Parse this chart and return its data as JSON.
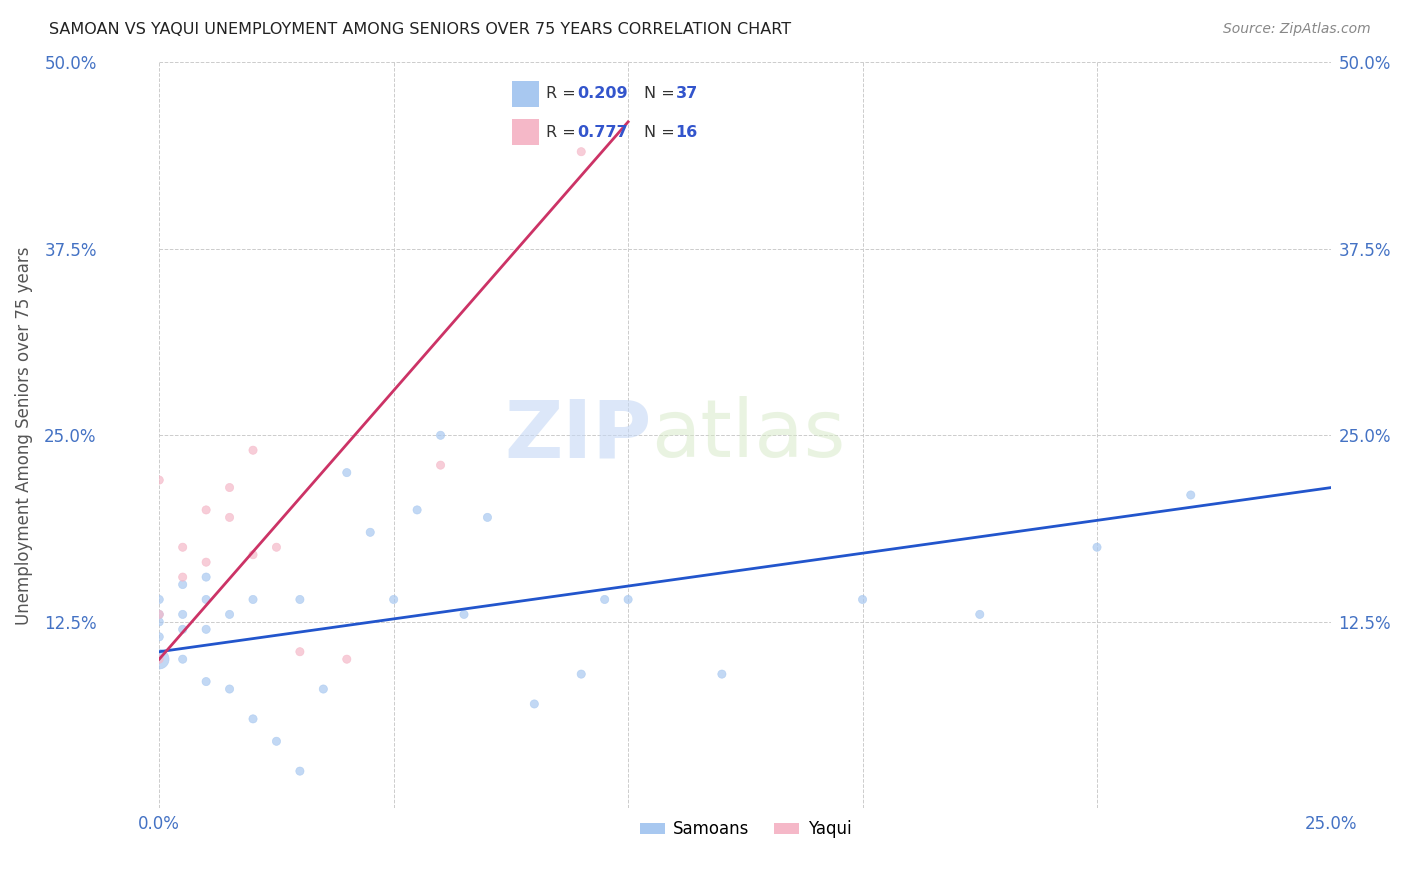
{
  "title": "SAMOAN VS YAQUI UNEMPLOYMENT AMONG SENIORS OVER 75 YEARS CORRELATION CHART",
  "source": "Source: ZipAtlas.com",
  "ylabel": "Unemployment Among Seniors over 75 years",
  "xlim": [
    0.0,
    0.25
  ],
  "ylim": [
    0.0,
    0.5
  ],
  "xticks": [
    0.0,
    0.05,
    0.1,
    0.15,
    0.2,
    0.25
  ],
  "yticks": [
    0.0,
    0.125,
    0.25,
    0.375,
    0.5
  ],
  "xticklabels": [
    "0.0%",
    "",
    "",
    "",
    "",
    "25.0%"
  ],
  "yticklabels": [
    "",
    "12.5%",
    "25.0%",
    "37.5%",
    "50.0%"
  ],
  "samoan_color": "#a8c8f0",
  "yaqui_color": "#f5b8c8",
  "samoan_line_color": "#2255cc",
  "yaqui_line_color": "#cc3366",
  "watermark_zip": "ZIP",
  "watermark_atlas": "atlas",
  "samoan_x": [
    0.0,
    0.0,
    0.0,
    0.0,
    0.0,
    0.005,
    0.005,
    0.005,
    0.005,
    0.01,
    0.01,
    0.01,
    0.01,
    0.015,
    0.015,
    0.02,
    0.02,
    0.025,
    0.03,
    0.03,
    0.035,
    0.04,
    0.045,
    0.05,
    0.055,
    0.06,
    0.065,
    0.07,
    0.08,
    0.09,
    0.095,
    0.1,
    0.12,
    0.15,
    0.175,
    0.2,
    0.22
  ],
  "samoan_y": [
    0.1,
    0.115,
    0.125,
    0.13,
    0.14,
    0.1,
    0.12,
    0.13,
    0.15,
    0.085,
    0.12,
    0.14,
    0.155,
    0.08,
    0.13,
    0.06,
    0.14,
    0.045,
    0.025,
    0.14,
    0.08,
    0.225,
    0.185,
    0.14,
    0.2,
    0.25,
    0.13,
    0.195,
    0.07,
    0.09,
    0.14,
    0.14,
    0.09,
    0.14,
    0.13,
    0.175,
    0.21
  ],
  "samoan_sizes": [
    200,
    35,
    35,
    35,
    35,
    35,
    35,
    35,
    35,
    35,
    35,
    35,
    35,
    35,
    35,
    35,
    35,
    35,
    35,
    35,
    35,
    35,
    35,
    35,
    35,
    35,
    35,
    35,
    35,
    35,
    35,
    35,
    35,
    35,
    35,
    35,
    35
  ],
  "yaqui_x": [
    0.0,
    0.0,
    0.0,
    0.005,
    0.005,
    0.01,
    0.01,
    0.015,
    0.015,
    0.02,
    0.02,
    0.025,
    0.03,
    0.04,
    0.06,
    0.09
  ],
  "yaqui_y": [
    0.1,
    0.13,
    0.22,
    0.155,
    0.175,
    0.165,
    0.2,
    0.195,
    0.215,
    0.17,
    0.24,
    0.175,
    0.105,
    0.1,
    0.23,
    0.44
  ],
  "yaqui_sizes": [
    35,
    35,
    35,
    35,
    35,
    35,
    35,
    35,
    35,
    35,
    35,
    35,
    35,
    35,
    35,
    35
  ],
  "samoan_line_x": [
    0.0,
    0.25
  ],
  "samoan_line_y": [
    0.105,
    0.215
  ],
  "yaqui_line_x": [
    0.0,
    0.1
  ],
  "yaqui_line_y": [
    0.1,
    0.46
  ]
}
